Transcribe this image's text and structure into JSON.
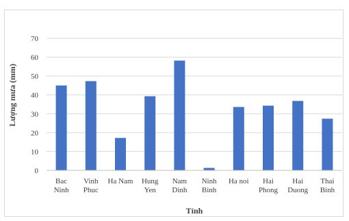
{
  "chart_data": {
    "type": "bar",
    "categories": [
      [
        "Bac",
        "Ninh"
      ],
      [
        "Vinh",
        "Phuc"
      ],
      [
        "Ha Nam"
      ],
      [
        "Hung",
        "Yen"
      ],
      [
        "Nam",
        "Dinh"
      ],
      [
        "Ninh",
        "Binh"
      ],
      [
        "Ha noi"
      ],
      [
        "Hai",
        "Phong"
      ],
      [
        "Hai",
        "Duong"
      ],
      [
        "Thai",
        "Binh"
      ]
    ],
    "values": [
      45,
      47.3,
      17.2,
      39.3,
      58.2,
      1.3,
      33.6,
      34.3,
      36.8,
      27.4
    ],
    "title": "",
    "xlabel": "Tỉnh",
    "ylabel": "Lượng mưa (mm)",
    "ylim": [
      0,
      70
    ],
    "yticks": [
      "0",
      "10",
      "20",
      "30",
      "40",
      "50",
      "60",
      "70"
    ],
    "grid": true,
    "legend": "none",
    "bar_color": "#4472c4",
    "grid_color": "#d9d9d9",
    "axis_color": "#bfbfbf"
  }
}
